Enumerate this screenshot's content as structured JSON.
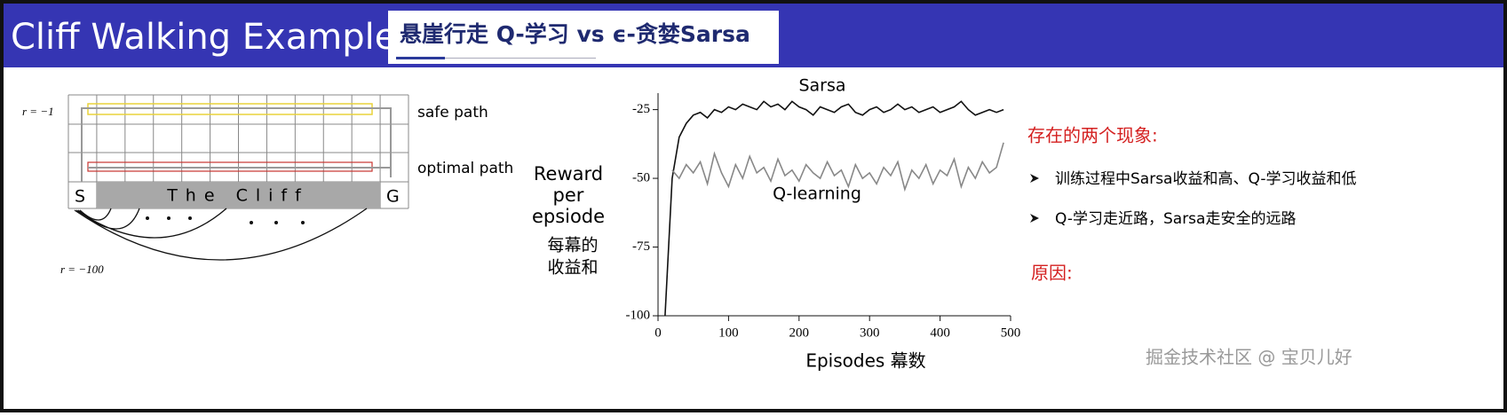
{
  "header": {
    "title": "Cliff Walking Example",
    "subtitle": "悬崖行走 Q-学习 vs ϵ-贪婪Sarsa"
  },
  "diagram": {
    "reward_step": "r = −1",
    "safe_path": "safe path",
    "optimal_path": "optimal path",
    "start": "S",
    "cliff": "The Cliff",
    "goal": "G",
    "reward_cliff": "r = −100"
  },
  "chart": {
    "type": "line",
    "y_label": [
      "Reward",
      "per",
      "epsiode"
    ],
    "y_label_zh": [
      "每幕的",
      "收益和"
    ],
    "x_label": "Episodes 幕数",
    "xlim": [
      0,
      500
    ],
    "xticks": [
      0,
      100,
      200,
      300,
      400,
      500
    ],
    "ylim": [
      -100,
      -19
    ],
    "yticks": [
      -25,
      -50,
      -75,
      -100
    ],
    "x": [
      10,
      20,
      30,
      40,
      50,
      60,
      70,
      80,
      90,
      100,
      110,
      120,
      130,
      140,
      150,
      160,
      170,
      180,
      190,
      200,
      210,
      220,
      230,
      240,
      250,
      260,
      270,
      280,
      290,
      300,
      310,
      320,
      330,
      340,
      350,
      360,
      370,
      380,
      390,
      400,
      410,
      420,
      430,
      440,
      450,
      460,
      470,
      480,
      490
    ],
    "series": [
      {
        "name": "Sarsa",
        "color": "#111111",
        "values": [
          -100,
          -50,
          -35,
          -30,
          -27,
          -26,
          -28,
          -25,
          -26,
          -24,
          -25,
          -23,
          -24,
          -25,
          -22,
          -24,
          -23,
          -25,
          -22,
          -24,
          -25,
          -27,
          -24,
          -25,
          -26,
          -24,
          -23,
          -26,
          -27,
          -25,
          -24,
          -26,
          -25,
          -23,
          -25,
          -24,
          -26,
          -25,
          -24,
          -26,
          -25,
          -24,
          -22,
          -25,
          -27,
          -26,
          -25,
          -26,
          -25
        ]
      },
      {
        "name": "Q-learning",
        "color": "#888888",
        "values": [
          null,
          -47,
          -50,
          -45,
          -48,
          -44,
          -52,
          -41,
          -48,
          -53,
          -45,
          -50,
          -42,
          -48,
          -46,
          -51,
          -43,
          -49,
          -47,
          -51,
          -45,
          -48,
          -50,
          -44,
          -49,
          -47,
          -53,
          -45,
          -50,
          -48,
          -52,
          -46,
          -49,
          -44,
          -54,
          -47,
          -50,
          -45,
          -52,
          -47,
          -49,
          -43,
          -53,
          -46,
          -50,
          -44,
          -48,
          -46,
          -37
        ]
      }
    ]
  },
  "notes": {
    "heading": "存在的两个现象:",
    "bullets": [
      "训练过程中Sarsa收益和高、Q-学习收益和低",
      "Q-学习走近路，Sarsa走安全的远路"
    ],
    "reason": "原因:"
  },
  "watermark": "掘金技术社区 @ 宝贝儿好"
}
